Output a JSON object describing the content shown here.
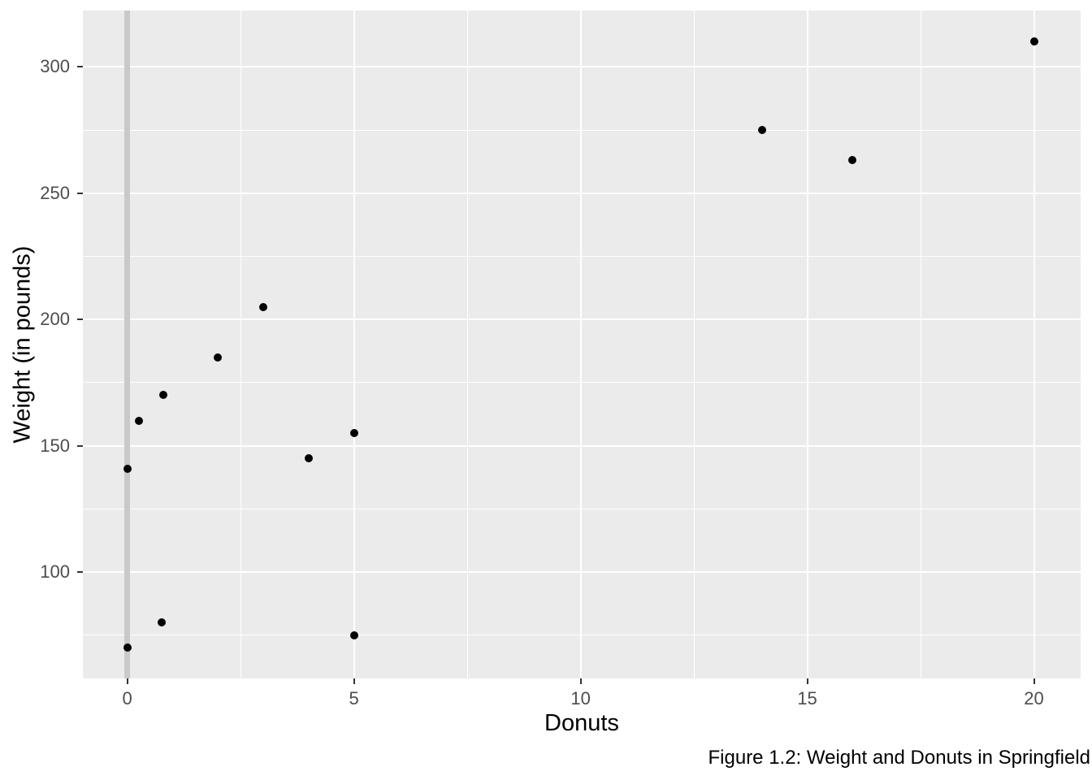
{
  "figure": {
    "caption": "Figure 1.2: Weight and Donuts in Springfield"
  },
  "chart_data": {
    "type": "scatter",
    "title": "",
    "xlabel": "Donuts",
    "ylabel": "Weight (in pounds)",
    "x_tick_values": [
      0,
      5,
      10,
      15,
      20
    ],
    "x_tick_labels": [
      "0",
      "5",
      "10",
      "15",
      "20"
    ],
    "y_tick_values": [
      100,
      150,
      200,
      250,
      300
    ],
    "y_tick_labels": [
      "100",
      "150",
      "200",
      "250",
      "300"
    ],
    "x_minor_values": [
      2.5,
      7.5,
      12.5,
      17.5
    ],
    "y_minor_values": [
      75,
      125,
      175,
      225,
      275
    ],
    "xlim": [
      -0.98,
      21.03
    ],
    "ylim": [
      57.9,
      322.3
    ],
    "grid": "on",
    "legend": "none",
    "zero_vline_x": 0,
    "points": [
      {
        "donuts": 0,
        "weight": 70
      },
      {
        "donuts": 0,
        "weight": 141
      },
      {
        "donuts": 0.25,
        "weight": 160
      },
      {
        "donuts": 0.75,
        "weight": 80
      },
      {
        "donuts": 0.8,
        "weight": 170
      },
      {
        "donuts": 2,
        "weight": 185
      },
      {
        "donuts": 3,
        "weight": 205
      },
      {
        "donuts": 4,
        "weight": 145
      },
      {
        "donuts": 5,
        "weight": 75
      },
      {
        "donuts": 5,
        "weight": 155
      },
      {
        "donuts": 14,
        "weight": 275
      },
      {
        "donuts": 16,
        "weight": 263
      },
      {
        "donuts": 20,
        "weight": 310
      }
    ],
    "colors": {
      "page_bg": "#FFFFFF",
      "panel_bg": "#EBEBEB",
      "gridline": "#FFFFFF",
      "zero_vline": "#C9C9C9",
      "point": "#000000",
      "tick_mark": "#333333",
      "tick_label": "#4D4D4D",
      "axis_title": "#000000",
      "caption": "#000000"
    }
  }
}
